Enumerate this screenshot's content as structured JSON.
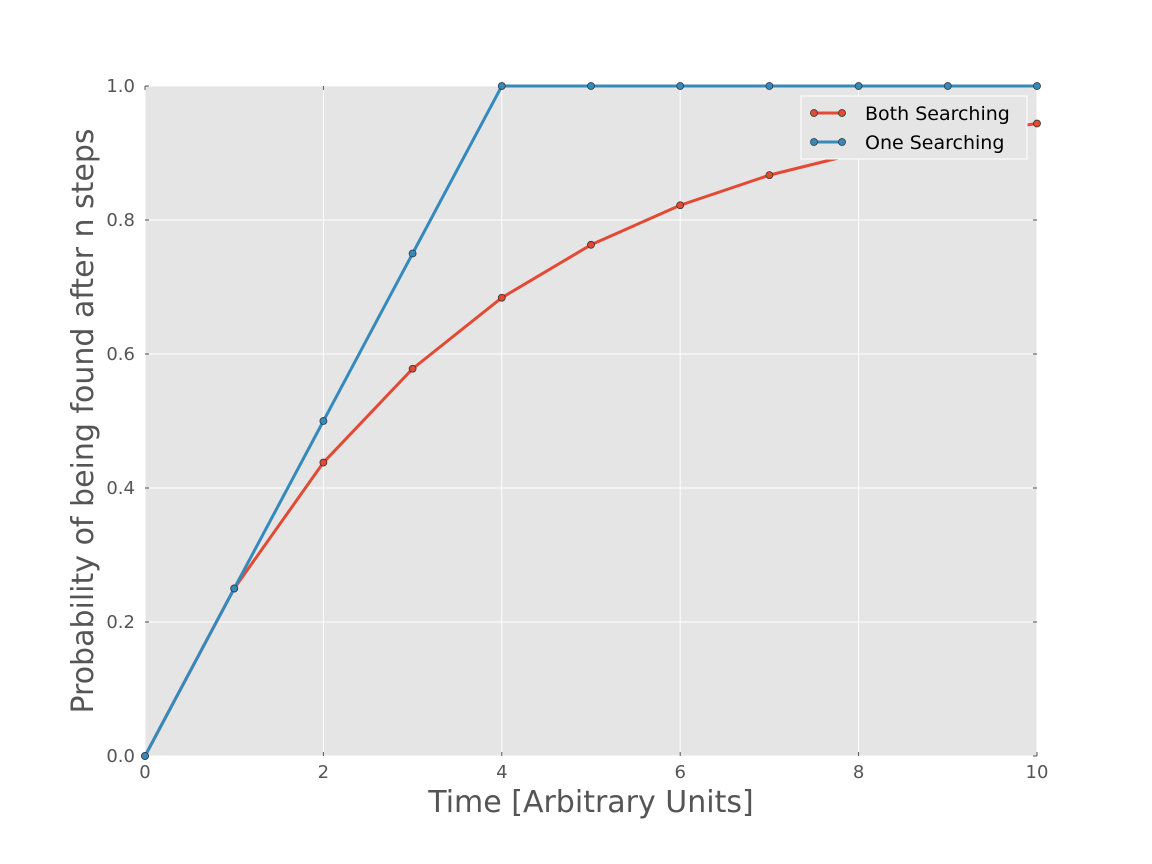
{
  "chart_data": {
    "type": "line",
    "title": "",
    "xlabel": "Time [Arbitrary Units]",
    "ylabel": "Probability of being found after n steps",
    "xlim": [
      0,
      10
    ],
    "ylim": [
      0,
      1
    ],
    "xticks": [
      0,
      2,
      4,
      6,
      8,
      10
    ],
    "xtick_labels": [
      "0",
      "2",
      "4",
      "6",
      "8",
      "10"
    ],
    "yticks": [
      0,
      0.2,
      0.4,
      0.6,
      0.8,
      1.0
    ],
    "ytick_labels": [
      "0.0",
      "0.2",
      "0.4",
      "0.6",
      "0.8",
      "1.0"
    ],
    "grid": true,
    "legend_position": "top-right",
    "background": "#e5e5e5",
    "series": [
      {
        "name": "Both Searching",
        "color": "#e24a33",
        "x": [
          0,
          1,
          2,
          3,
          4,
          5,
          6,
          7,
          8,
          9,
          10
        ],
        "y": [
          0.0,
          0.25,
          0.438,
          0.578,
          0.684,
          0.763,
          0.822,
          0.867,
          0.9,
          0.925,
          0.944
        ]
      },
      {
        "name": "One Searching",
        "color": "#348abd",
        "x": [
          0,
          1,
          2,
          3,
          4,
          5,
          6,
          7,
          8,
          9,
          10
        ],
        "y": [
          0.0,
          0.25,
          0.5,
          0.75,
          1.0,
          1.0,
          1.0,
          1.0,
          1.0,
          1.0,
          1.0
        ]
      }
    ]
  }
}
